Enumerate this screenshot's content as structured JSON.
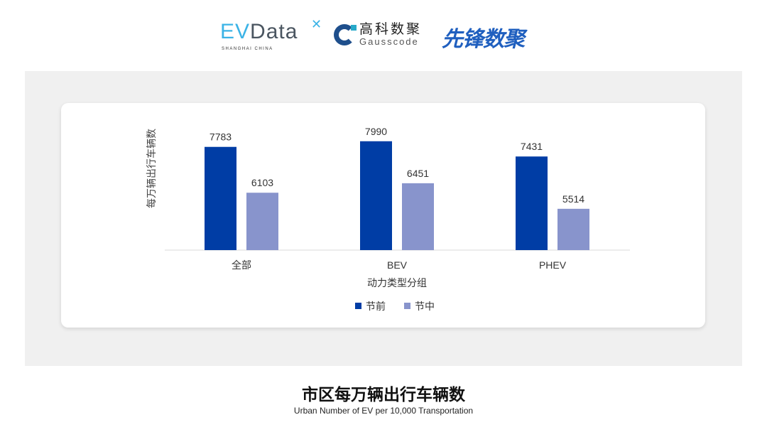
{
  "logos": {
    "evdata": {
      "text_ev": "EV",
      "text_data": "Data",
      "tagline": "SHANGHAI CHINA"
    },
    "gausscode": {
      "cn": "高科数聚",
      "en": "Gausscode"
    },
    "xianfeng": {
      "cn": "先锋数聚"
    }
  },
  "colors": {
    "panel": "#f0f0f0",
    "series_before": "#003da5",
    "series_during": "#8894cc"
  },
  "footer": {
    "title": "市区每万辆出行车辆数",
    "subtitle": "Urban Number of EV per 10,000 Transportation"
  },
  "chart_data": {
    "type": "bar",
    "categories": [
      "全部",
      "BEV",
      "PHEV"
    ],
    "series": [
      {
        "name": "节前",
        "values": [
          7783,
          7990,
          7431
        ],
        "color": "#003da5"
      },
      {
        "name": "节中",
        "values": [
          6103,
          6451,
          5514
        ],
        "color": "#8894cc"
      }
    ],
    "xlabel": "动力类型分组",
    "ylabel": "每万辆出行车辆数",
    "ylim": [
      4000,
      8500
    ],
    "grid": false,
    "legend": "bottom",
    "data_labels": true
  }
}
